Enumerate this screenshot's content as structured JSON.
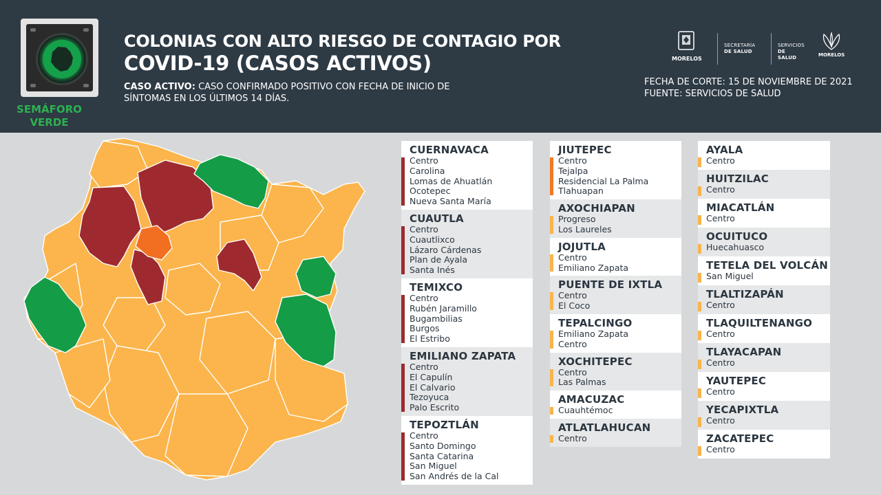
{
  "header": {
    "semaforo_label": "SEMÁFORO VERDE",
    "title_line1": "COLONIAS CON ALTO RIESGO DE CONTAGIO POR",
    "title_line2": "COVID-19 (CASOS ACTIVOS)",
    "subtitle_bold": "CASO ACTIVO:",
    "subtitle_text": "CASO CONFIRMADO POSITIVO CON FECHA DE INICIO DE SÍNTOMAS EN LOS ÚLTIMOS 14 DÍAS.",
    "fecha": "FECHA DE CORTE: 15 DE NOVIEMBRE DE 2021",
    "fuente": "FUENTE: SERVICIOS DE SALUD",
    "logo_morelos": "MORELOS",
    "logo_secretaria_1": "SECRETARÍA",
    "logo_secretaria_2": "DE SALUD",
    "logo_servicios_1": "SERVICIOS",
    "logo_servicios_2": "DE SALUD",
    "logo_morelos_2": "MORELOS"
  },
  "colors": {
    "header_bg": "#2e3a44",
    "green": "#149c47",
    "yellow": "#f7b54c",
    "orange": "#f07a24",
    "red": "#9e2a2f"
  },
  "column1": [
    {
      "municipio": "CUERNAVACA",
      "level": "red",
      "colonias": [
        "Centro",
        "Carolina",
        "Lomas de Ahuatlán",
        "Ocotepec",
        "Nueva Santa María"
      ]
    },
    {
      "municipio": "CUAUTLA",
      "level": "red",
      "colonias": [
        "Centro",
        "Cuautlixco",
        "Lázaro Cárdenas",
        "Plan de Ayala",
        "Santa Inés"
      ]
    },
    {
      "municipio": "TEMIXCO",
      "level": "red",
      "colonias": [
        "Centro",
        "Rubén Jaramillo",
        "Bugambilias",
        "Burgos",
        "El Estribo"
      ]
    },
    {
      "municipio": "EMILIANO ZAPATA",
      "level": "red",
      "colonias": [
        "Centro",
        "El Capulín",
        "El Calvario",
        "Tezoyuca",
        "Palo Escrito"
      ]
    },
    {
      "municipio": "TEPOZTLÁN",
      "level": "red",
      "colonias": [
        "Centro",
        "Santo Domingo",
        "Santa Catarina",
        "San Miguel",
        "San Andrés de la Cal"
      ]
    }
  ],
  "column2": [
    {
      "municipio": "JIUTEPEC",
      "level": "orange",
      "colonias": [
        "Centro",
        "Tejalpa",
        "Residencial La Palma",
        "Tlahuapan"
      ]
    },
    {
      "municipio": "AXOCHIAPAN",
      "level": "yellow",
      "colonias": [
        "Progreso",
        "Los Laureles"
      ]
    },
    {
      "municipio": "JOJUTLA",
      "level": "yellow",
      "colonias": [
        "Centro",
        "Emiliano Zapata"
      ]
    },
    {
      "municipio": "PUENTE DE IXTLA",
      "level": "yellow",
      "colonias": [
        "Centro",
        "El Coco"
      ]
    },
    {
      "municipio": "TEPALCINGO",
      "level": "yellow",
      "colonias": [
        "Emiliano Zapata",
        "Centro"
      ]
    },
    {
      "municipio": "XOCHITEPEC",
      "level": "yellow",
      "colonias": [
        "Centro",
        "Las Palmas"
      ]
    },
    {
      "municipio": "AMACUZAC",
      "level": "yellow",
      "colonias": [
        "Cuauhtémoc"
      ]
    },
    {
      "municipio": "ATLATLAHUCAN",
      "level": "yellow",
      "colonias": [
        "Centro"
      ]
    }
  ],
  "column3": [
    {
      "municipio": "AYALA",
      "level": "yellow",
      "colonias": [
        "Centro"
      ]
    },
    {
      "municipio": "HUITZILAC",
      "level": "yellow",
      "colonias": [
        "Centro"
      ]
    },
    {
      "municipio": "MIACATLÁN",
      "level": "yellow",
      "colonias": [
        "Centro"
      ]
    },
    {
      "municipio": "OCUITUCO",
      "level": "yellow",
      "colonias": [
        "Huecahuasco"
      ]
    },
    {
      "municipio": "TETELA DEL VOLCÁN",
      "level": "yellow",
      "colonias": [
        "San Miguel"
      ]
    },
    {
      "municipio": "TLALTIZAPÁN",
      "level": "yellow",
      "colonias": [
        "Centro"
      ]
    },
    {
      "municipio": "TLAQUILTENANGO",
      "level": "yellow",
      "colonias": [
        "Centro"
      ]
    },
    {
      "municipio": "TLAYACAPAN",
      "level": "yellow",
      "colonias": [
        "Centro"
      ]
    },
    {
      "municipio": "YAUTEPEC",
      "level": "yellow",
      "colonias": [
        "Centro"
      ]
    },
    {
      "municipio": "YECAPIXTLA",
      "level": "yellow",
      "colonias": [
        "Centro"
      ]
    },
    {
      "municipio": "ZACATEPEC",
      "level": "yellow",
      "colonias": [
        "Centro"
      ]
    }
  ]
}
